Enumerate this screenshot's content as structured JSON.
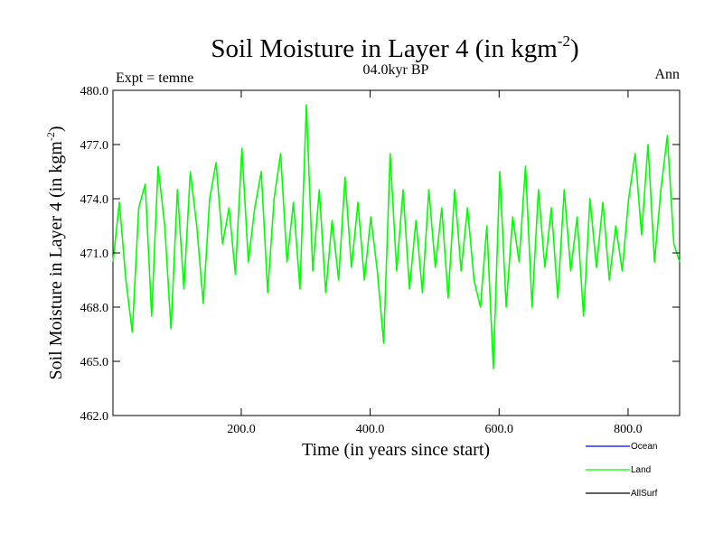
{
  "chart_data": {
    "type": "line",
    "title_main": "Soil Moisture in Layer 4 (in kgm",
    "title_sup": "-2",
    "title_end": ")",
    "subtitle": "04.0kyr BP",
    "left_label": "Expt = temne",
    "right_label": "Ann",
    "xlabel": "Time (in years since start)",
    "ylabel_main": "Soil Moisture in Layer 4 (in kgm",
    "ylabel_sup": "-2",
    "ylabel_end": ")",
    "xlim": [
      1,
      880
    ],
    "ylim": [
      462.0,
      480.0
    ],
    "xticks": [
      200,
      400,
      600,
      800
    ],
    "xtick_labels": [
      "200.0",
      "400.0",
      "600.0",
      "800.0"
    ],
    "yticks": [
      462,
      465,
      468,
      471,
      474,
      477,
      480
    ],
    "ytick_labels": [
      "462.0",
      "465.0",
      "468.0",
      "471.0",
      "474.0",
      "477.0",
      "480.0"
    ],
    "legend": [
      {
        "name": "Ocean",
        "color": "#0000ff"
      },
      {
        "name": "Land",
        "color": "#00ff00"
      },
      {
        "name": "AllSurf",
        "color": "#000000"
      }
    ],
    "series": [
      {
        "name": "Land",
        "color": "#00ff00",
        "x_start": 1,
        "x_step": 10,
        "values": [
          470.5,
          473.8,
          469.5,
          466.6,
          473.5,
          474.8,
          467.5,
          475.8,
          472.6,
          466.8,
          474.5,
          469.0,
          475.5,
          472.5,
          468.2,
          474.0,
          476.0,
          471.5,
          473.5,
          469.8,
          476.8,
          470.5,
          473.5,
          475.5,
          468.8,
          474.0,
          476.5,
          470.5,
          473.8,
          469.0,
          479.2,
          470.0,
          474.5,
          468.8,
          472.8,
          469.5,
          475.2,
          470.2,
          473.8,
          469.5,
          473.0,
          470.0,
          466.0,
          476.5,
          470.0,
          474.5,
          469.0,
          472.8,
          468.8,
          474.5,
          470.2,
          473.5,
          468.5,
          474.5,
          470.0,
          473.5,
          469.5,
          468.0,
          472.5,
          464.6,
          475.5,
          468.0,
          473.0,
          470.5,
          475.8,
          468.0,
          474.5,
          470.2,
          473.5,
          468.5,
          474.5,
          470.0,
          473.0,
          467.5,
          474.0,
          470.2,
          473.8,
          469.5,
          472.5,
          470.0,
          474.0,
          476.5,
          472.0,
          477.0,
          470.5,
          474.5,
          477.5,
          471.5,
          470.5
        ]
      },
      {
        "name": "Ocean",
        "color": "#0000ff",
        "values": []
      },
      {
        "name": "AllSurf",
        "color": "#000000",
        "values": []
      }
    ]
  }
}
